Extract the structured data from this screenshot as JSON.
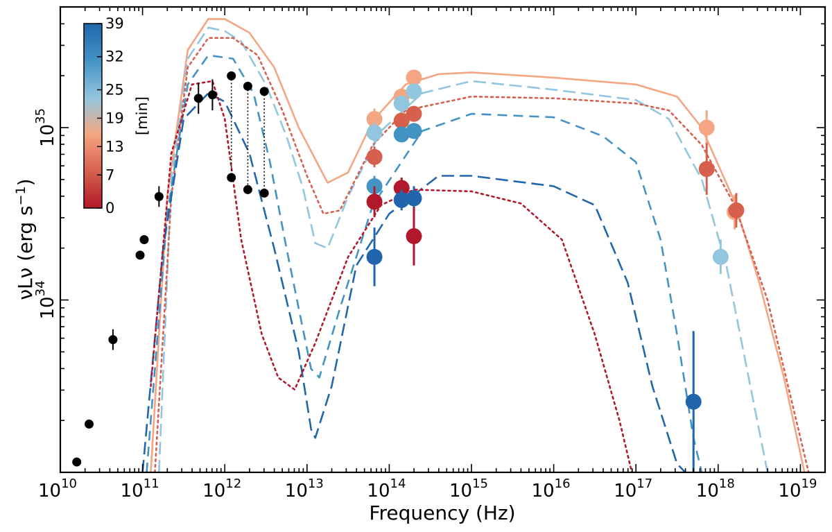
{
  "chart_data": {
    "type": "scatter",
    "title": "",
    "xlabel": "Frequency (Hz)",
    "ylabel": "νLν (erg s",
    "ylabel_sup": "−1",
    "ylabel_close": ")",
    "xscale": "log",
    "yscale": "log",
    "xlim_log10": [
      10,
      19.3
    ],
    "ylim_log10": [
      33.0,
      35.7
    ],
    "x_ticks": [
      {
        "base": "10",
        "exp": "10",
        "log": 10
      },
      {
        "base": "10",
        "exp": "11",
        "log": 11
      },
      {
        "base": "10",
        "exp": "12",
        "log": 12
      },
      {
        "base": "10",
        "exp": "13",
        "log": 13
      },
      {
        "base": "10",
        "exp": "14",
        "log": 14
      },
      {
        "base": "10",
        "exp": "15",
        "log": 15
      },
      {
        "base": "10",
        "exp": "16",
        "log": 16
      },
      {
        "base": "10",
        "exp": "17",
        "log": 17
      },
      {
        "base": "10",
        "exp": "18",
        "log": 18
      },
      {
        "base": "10",
        "exp": "19",
        "log": 19
      }
    ],
    "y_ticks": [
      {
        "base": "10",
        "exp": "34",
        "log": 34
      },
      {
        "base": "10",
        "exp": "35",
        "log": 35
      }
    ],
    "colorbar": {
      "label": "[min]",
      "min": 0,
      "max": 39,
      "tick_labels": [
        "0",
        "7",
        "13",
        "19",
        "25",
        "32",
        "39"
      ],
      "tick_values": [
        0,
        7,
        13,
        19,
        25,
        32,
        39
      ],
      "colors": [
        "#b2182b",
        "#d6604d",
        "#f4a582",
        "#92c5de",
        "#4393c3",
        "#2166ac"
      ]
    },
    "black_points": [
      {
        "logx": 10.2,
        "logy": 33.06,
        "err": 0
      },
      {
        "logx": 10.35,
        "logy": 33.28,
        "err": 0
      },
      {
        "logx": 10.64,
        "logy": 33.77,
        "err": 0.06
      },
      {
        "logx": 10.97,
        "logy": 34.26,
        "err": 0
      },
      {
        "logx": 11.02,
        "logy": 34.35,
        "err": 0
      },
      {
        "logx": 11.2,
        "logy": 34.6,
        "err": 0.06
      },
      {
        "logx": 11.68,
        "logy": 35.17,
        "err": 0.09
      },
      {
        "logx": 11.85,
        "logy": 35.19,
        "err": 0.09
      },
      {
        "logx": 12.08,
        "logy": 35.3,
        "err": 0
      },
      {
        "logx": 12.08,
        "logy": 34.71,
        "err": 0
      },
      {
        "logx": 12.28,
        "logy": 35.24,
        "err": 0
      },
      {
        "logx": 12.28,
        "logy": 34.64,
        "err": 0
      },
      {
        "logx": 12.48,
        "logy": 35.21,
        "err": 0
      },
      {
        "logx": 12.48,
        "logy": 34.62,
        "err": 0
      }
    ],
    "black_links": [
      {
        "logx": 12.08,
        "from": 35.3,
        "to": 34.71
      },
      {
        "logx": 12.28,
        "from": 35.24,
        "to": 34.64
      },
      {
        "logx": 12.48,
        "from": 35.21,
        "to": 34.62
      }
    ],
    "colored_points": [
      {
        "logx": 13.82,
        "logy": 35.05,
        "err": 0.06,
        "color": "#f4a582"
      },
      {
        "logx": 13.82,
        "logy": 34.97,
        "err": 0.06,
        "color": "#92c5de"
      },
      {
        "logx": 13.82,
        "logy": 34.83,
        "err": 0.06,
        "color": "#d6604d"
      },
      {
        "logx": 13.82,
        "logy": 34.66,
        "err": 0.06,
        "color": "#4393c3"
      },
      {
        "logx": 13.82,
        "logy": 34.57,
        "err": 0.09,
        "color": "#b2182b"
      },
      {
        "logx": 13.82,
        "logy": 34.25,
        "err": 0.17,
        "color": "#2166ac"
      },
      {
        "logx": 14.15,
        "logy": 35.18,
        "err": 0.04,
        "color": "#f4a582"
      },
      {
        "logx": 14.15,
        "logy": 35.14,
        "err": 0.04,
        "color": "#92c5de"
      },
      {
        "logx": 14.15,
        "logy": 35.04,
        "err": 0.04,
        "color": "#d6604d"
      },
      {
        "logx": 14.15,
        "logy": 34.96,
        "err": 0.04,
        "color": "#4393c3"
      },
      {
        "logx": 14.15,
        "logy": 34.65,
        "err": 0.06,
        "color": "#b2182b"
      },
      {
        "logx": 14.15,
        "logy": 34.58,
        "err": 0.06,
        "color": "#2166ac"
      },
      {
        "logx": 14.3,
        "logy": 35.29,
        "err": 0.04,
        "color": "#f4a582"
      },
      {
        "logx": 14.3,
        "logy": 35.21,
        "err": 0.04,
        "color": "#92c5de"
      },
      {
        "logx": 14.3,
        "logy": 35.08,
        "err": 0.04,
        "color": "#d6604d"
      },
      {
        "logx": 14.3,
        "logy": 34.98,
        "err": 0.04,
        "color": "#4393c3"
      },
      {
        "logx": 14.3,
        "logy": 34.59,
        "err": 0.07,
        "color": "#2166ac"
      },
      {
        "logx": 14.3,
        "logy": 34.37,
        "err": 0.17,
        "color": "#b2182b"
      },
      {
        "logx": 17.86,
        "logy": 35.0,
        "err": 0.1,
        "color": "#f4a582"
      },
      {
        "logx": 17.86,
        "logy": 34.76,
        "err": 0.15,
        "color": "#d6604d"
      },
      {
        "logx": 18.03,
        "logy": 34.25,
        "err": 0.1,
        "color": "#92c5de"
      },
      {
        "logx": 18.2,
        "logy": 34.51,
        "err": 0.1,
        "color": "#f4a582"
      },
      {
        "logx": 18.22,
        "logy": 34.52,
        "err": 0.1,
        "color": "#d6604d"
      },
      {
        "logx": 17.7,
        "logy": 33.41,
        "err": 0.41,
        "color": "#2166ac"
      }
    ],
    "series": [
      {
        "name": "model 19 min (light orange, solid)",
        "color": "#f4a582",
        "style": "solid",
        "points": [
          [
            11.1,
            33.0
          ],
          [
            11.3,
            34.6
          ],
          [
            11.55,
            35.45
          ],
          [
            11.8,
            35.63
          ],
          [
            12.0,
            35.63
          ],
          [
            12.3,
            35.55
          ],
          [
            12.6,
            35.35
          ],
          [
            12.9,
            35.0
          ],
          [
            13.25,
            34.68
          ],
          [
            13.5,
            34.74
          ],
          [
            13.8,
            35.04
          ],
          [
            14.2,
            35.25
          ],
          [
            14.6,
            35.31
          ],
          [
            15.0,
            35.32
          ],
          [
            16.0,
            35.29
          ],
          [
            17.0,
            35.25
          ],
          [
            17.5,
            35.18
          ],
          [
            17.8,
            35.0
          ],
          [
            18.2,
            34.57
          ],
          [
            18.5,
            34.1
          ],
          [
            18.8,
            33.55
          ],
          [
            19.05,
            33.0
          ]
        ]
      },
      {
        "name": "model 25 min (light blue, long dash)",
        "color": "#92c5de",
        "style": "longdash",
        "points": [
          [
            11.2,
            33.0
          ],
          [
            11.35,
            34.7
          ],
          [
            11.55,
            35.4
          ],
          [
            11.8,
            35.58
          ],
          [
            12.0,
            35.56
          ],
          [
            12.2,
            35.5
          ],
          [
            12.5,
            35.25
          ],
          [
            12.75,
            34.95
          ],
          [
            12.95,
            34.65
          ],
          [
            13.1,
            34.33
          ],
          [
            13.25,
            34.3
          ],
          [
            13.5,
            34.6
          ],
          [
            13.9,
            34.98
          ],
          [
            14.4,
            35.2
          ],
          [
            15.0,
            35.27
          ],
          [
            16.0,
            35.22
          ],
          [
            17.0,
            35.16
          ],
          [
            17.4,
            35.05
          ],
          [
            17.8,
            34.7
          ],
          [
            18.1,
            34.2
          ],
          [
            18.35,
            33.6
          ],
          [
            18.6,
            33.0
          ]
        ]
      },
      {
        "name": "model 13 min (red-orange, dotted)",
        "color": "#d6604d",
        "style": "dotted",
        "points": [
          [
            11.15,
            33.0
          ],
          [
            11.35,
            34.6
          ],
          [
            11.55,
            35.35
          ],
          [
            11.8,
            35.52
          ],
          [
            12.1,
            35.52
          ],
          [
            12.4,
            35.42
          ],
          [
            12.7,
            35.1
          ],
          [
            13.0,
            34.72
          ],
          [
            13.2,
            34.5
          ],
          [
            13.4,
            34.52
          ],
          [
            13.8,
            34.9
          ],
          [
            14.2,
            35.1
          ],
          [
            15.0,
            35.18
          ],
          [
            16.0,
            35.17
          ],
          [
            17.0,
            35.14
          ],
          [
            17.4,
            35.1
          ],
          [
            17.8,
            34.9
          ],
          [
            18.2,
            34.55
          ],
          [
            18.6,
            34.0
          ],
          [
            18.9,
            33.4
          ],
          [
            19.1,
            33.0
          ]
        ]
      },
      {
        "name": "model 32 min (medium blue, dashed)",
        "color": "#4393c3",
        "style": "dashed",
        "points": [
          [
            11.05,
            33.0
          ],
          [
            11.3,
            34.5
          ],
          [
            11.55,
            35.25
          ],
          [
            11.8,
            35.42
          ],
          [
            12.1,
            35.4
          ],
          [
            12.35,
            35.2
          ],
          [
            12.55,
            34.8
          ],
          [
            12.75,
            34.3
          ],
          [
            12.9,
            33.95
          ],
          [
            13.05,
            33.6
          ],
          [
            13.15,
            33.55
          ],
          [
            13.4,
            33.95
          ],
          [
            13.8,
            34.55
          ],
          [
            14.4,
            34.98
          ],
          [
            15.0,
            35.08
          ],
          [
            16.0,
            35.06
          ],
          [
            16.6,
            34.95
          ],
          [
            17.0,
            34.8
          ],
          [
            17.3,
            34.35
          ],
          [
            17.5,
            33.8
          ],
          [
            17.7,
            33.2
          ],
          [
            17.8,
            33.0
          ]
        ]
      },
      {
        "name": "model 39 min (dark blue, long dash)",
        "color": "#2166ac",
        "style": "longdash",
        "points": [
          [
            11.0,
            33.0
          ],
          [
            11.25,
            34.3
          ],
          [
            11.5,
            35.05
          ],
          [
            11.8,
            35.2
          ],
          [
            12.0,
            35.15
          ],
          [
            12.3,
            34.85
          ],
          [
            12.6,
            34.3
          ],
          [
            12.9,
            33.7
          ],
          [
            13.05,
            33.25
          ],
          [
            13.1,
            33.2
          ],
          [
            13.3,
            33.5
          ],
          [
            13.6,
            34.2
          ],
          [
            14.0,
            34.5
          ],
          [
            14.6,
            34.72
          ],
          [
            15.0,
            34.72
          ],
          [
            16.0,
            34.66
          ],
          [
            16.5,
            34.55
          ],
          [
            16.9,
            34.1
          ],
          [
            17.2,
            33.5
          ],
          [
            17.5,
            33.05
          ],
          [
            17.6,
            33.0
          ]
        ]
      },
      {
        "name": "model 0 min (dark red, dotted)",
        "color": "#b2182b",
        "style": "dotted",
        "points": [
          [
            11.1,
            33.5
          ],
          [
            11.35,
            34.85
          ],
          [
            11.6,
            35.25
          ],
          [
            11.85,
            35.27
          ],
          [
            12.0,
            35.05
          ],
          [
            12.2,
            34.35
          ],
          [
            12.45,
            33.8
          ],
          [
            12.65,
            33.55
          ],
          [
            12.85,
            33.48
          ],
          [
            13.1,
            33.75
          ],
          [
            13.5,
            34.25
          ],
          [
            13.9,
            34.55
          ],
          [
            14.3,
            34.64
          ],
          [
            15.0,
            34.63
          ],
          [
            15.6,
            34.56
          ],
          [
            16.1,
            34.35
          ],
          [
            16.5,
            33.8
          ],
          [
            16.8,
            33.3
          ],
          [
            16.95,
            33.0
          ]
        ]
      }
    ]
  }
}
